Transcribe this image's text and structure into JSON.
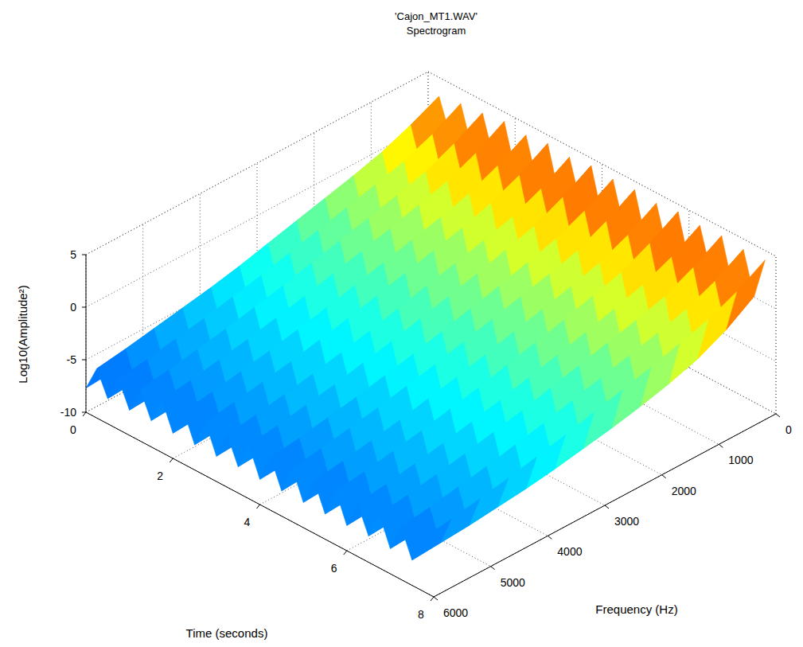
{
  "chart_data": {
    "type": "surface",
    "title": "'Cajon_MT1.WAV'\nSpectrogram",
    "xlabel": "Time (seconds)",
    "ylabel": "Frequency (Hz)",
    "zlabel": "Log10(Amplitude²)",
    "xlim": [
      0,
      8
    ],
    "ylim": [
      0,
      6000
    ],
    "zlim": [
      -10,
      5
    ],
    "xticks": [
      0,
      2,
      4,
      6,
      8
    ],
    "yticks": [
      0,
      1000,
      2000,
      3000,
      4000,
      5000,
      6000
    ],
    "zticks": [
      -10,
      -5,
      0,
      5
    ],
    "grid": true,
    "x": [
      0,
      0.25,
      0.5,
      0.75,
      1,
      1.25,
      1.5,
      1.75,
      2,
      2.25,
      2.5,
      2.75,
      3,
      3.25,
      3.5,
      3.75,
      4,
      4.25,
      4.5,
      4.75,
      5,
      5.25,
      5.5,
      5.75,
      6,
      6.25,
      6.5,
      6.75,
      7,
      7.25,
      7.5,
      7.75
    ],
    "y": [
      0,
      500,
      1000,
      1500,
      2000,
      2500,
      3000,
      3500,
      4000,
      4500,
      5000,
      5500,
      6000
    ],
    "values": [
      [
        -0.3,
        -2.0,
        -3.2,
        -4.1,
        -4.8,
        -5.4,
        -5.9,
        -6.3,
        -6.7,
        -7.0,
        -7.3,
        -7.5,
        -7.7
      ],
      [
        3.2,
        1.9,
        0.8,
        0.0,
        -0.7,
        -1.4,
        -2.1,
        -2.8,
        -3.4,
        -3.9,
        -4.4,
        -4.9,
        -5.3
      ],
      [
        0.1,
        -1.7,
        -3.0,
        -3.9,
        -4.6,
        -5.2,
        -5.7,
        -6.2,
        -6.6,
        -6.9,
        -7.2,
        -7.4,
        -7.6
      ],
      [
        3.6,
        2.1,
        1.0,
        0.2,
        -0.5,
        -1.2,
        -1.9,
        -2.6,
        -3.2,
        -3.8,
        -4.3,
        -4.8,
        -5.2
      ],
      [
        0.0,
        -1.8,
        -3.1,
        -3.9,
        -4.7,
        -5.3,
        -5.8,
        -6.2,
        -6.6,
        -7.0,
        -7.2,
        -7.4,
        -7.6
      ],
      [
        3.8,
        2.3,
        1.1,
        0.3,
        -0.4,
        -1.1,
        -1.8,
        -2.5,
        -3.1,
        -3.7,
        -4.2,
        -4.7,
        -5.1
      ],
      [
        0.2,
        -1.6,
        -2.9,
        -3.8,
        -4.5,
        -5.1,
        -5.6,
        -6.1,
        -6.5,
        -6.9,
        -7.1,
        -7.3,
        -7.5
      ],
      [
        4.1,
        2.5,
        1.3,
        0.5,
        -0.3,
        -1.0,
        -1.7,
        -2.4,
        -3.0,
        -3.6,
        -4.1,
        -4.6,
        -5.0
      ],
      [
        0.0,
        -1.8,
        -3.0,
        -3.9,
        -4.6,
        -5.2,
        -5.7,
        -6.2,
        -6.6,
        -6.9,
        -7.2,
        -7.4,
        -7.6
      ],
      [
        3.9,
        2.4,
        1.2,
        0.4,
        -0.3,
        -1.0,
        -1.7,
        -2.4,
        -3.0,
        -3.6,
        -4.1,
        -4.6,
        -5.0
      ],
      [
        0.1,
        -1.7,
        -3.0,
        -3.9,
        -4.6,
        -5.2,
        -5.7,
        -6.1,
        -6.5,
        -6.9,
        -7.1,
        -7.4,
        -7.6
      ],
      [
        4.2,
        2.6,
        1.4,
        0.5,
        -0.2,
        -0.9,
        -1.6,
        -2.3,
        -2.9,
        -3.5,
        -4.0,
        -4.5,
        -4.9
      ],
      [
        0.0,
        -1.8,
        -3.1,
        -4.0,
        -4.7,
        -5.3,
        -5.8,
        -6.2,
        -6.6,
        -7.0,
        -7.2,
        -7.4,
        -7.6
      ],
      [
        4.0,
        2.4,
        1.2,
        0.4,
        -0.3,
        -1.0,
        -1.7,
        -2.4,
        -3.0,
        -3.6,
        -4.1,
        -4.6,
        -5.0
      ],
      [
        0.2,
        -1.6,
        -2.9,
        -3.8,
        -4.5,
        -5.1,
        -5.6,
        -6.1,
        -6.5,
        -6.8,
        -7.1,
        -7.3,
        -7.5
      ],
      [
        4.3,
        2.7,
        1.4,
        0.6,
        -0.2,
        -0.9,
        -1.6,
        -2.3,
        -2.9,
        -3.5,
        -4.0,
        -4.5,
        -4.9
      ],
      [
        0.0,
        -1.8,
        -3.0,
        -3.9,
        -4.6,
        -5.2,
        -5.7,
        -6.2,
        -6.6,
        -6.9,
        -7.2,
        -7.4,
        -7.6
      ],
      [
        4.1,
        2.5,
        1.3,
        0.5,
        -0.3,
        -1.0,
        -1.7,
        -2.4,
        -3.0,
        -3.6,
        -4.1,
        -4.6,
        -5.0
      ],
      [
        0.1,
        -1.7,
        -3.0,
        -3.9,
        -4.6,
        -5.2,
        -5.7,
        -6.2,
        -6.6,
        -6.9,
        -7.2,
        -7.4,
        -7.6
      ],
      [
        4.2,
        2.6,
        1.3,
        0.5,
        -0.2,
        -0.9,
        -1.6,
        -2.3,
        -2.9,
        -3.5,
        -4.0,
        -4.5,
        -4.9
      ],
      [
        0.0,
        -1.8,
        -3.1,
        -4.0,
        -4.7,
        -5.3,
        -5.8,
        -6.2,
        -6.6,
        -7.0,
        -7.2,
        -7.4,
        -7.6
      ],
      [
        4.0,
        2.4,
        1.2,
        0.4,
        -0.3,
        -1.0,
        -1.7,
        -2.4,
        -3.0,
        -3.6,
        -4.1,
        -4.6,
        -5.0
      ],
      [
        0.1,
        -1.7,
        -3.0,
        -3.9,
        -4.6,
        -5.2,
        -5.7,
        -6.1,
        -6.5,
        -6.9,
        -7.1,
        -7.4,
        -7.6
      ],
      [
        4.3,
        2.7,
        1.4,
        0.6,
        -0.2,
        -0.9,
        -1.6,
        -2.3,
        -2.9,
        -3.5,
        -4.0,
        -4.5,
        -4.9
      ],
      [
        0.0,
        -1.8,
        -3.0,
        -3.9,
        -4.6,
        -5.2,
        -5.7,
        -6.2,
        -6.6,
        -6.9,
        -7.2,
        -7.4,
        -7.6
      ],
      [
        4.1,
        2.5,
        1.3,
        0.5,
        -0.3,
        -1.0,
        -1.7,
        -2.4,
        -3.0,
        -3.6,
        -4.1,
        -4.6,
        -5.0
      ],
      [
        0.2,
        -1.6,
        -2.9,
        -3.8,
        -4.5,
        -5.1,
        -5.6,
        -6.1,
        -6.5,
        -6.8,
        -7.1,
        -7.3,
        -7.5
      ],
      [
        4.2,
        2.6,
        1.3,
        0.5,
        -0.2,
        -0.9,
        -1.6,
        -2.3,
        -2.9,
        -3.5,
        -4.0,
        -4.5,
        -4.9
      ],
      [
        0.0,
        -1.8,
        -3.1,
        -4.0,
        -4.7,
        -5.3,
        -5.8,
        -6.2,
        -6.6,
        -7.0,
        -7.2,
        -7.4,
        -7.6
      ],
      [
        4.0,
        2.4,
        1.2,
        0.4,
        -0.3,
        -1.0,
        -1.7,
        -2.4,
        -3.0,
        -3.6,
        -4.1,
        -4.6,
        -5.0
      ],
      [
        0.1,
        -1.7,
        -3.0,
        -3.9,
        -4.6,
        -5.2,
        -5.7,
        -6.2,
        -6.6,
        -6.9,
        -7.2,
        -7.4,
        -7.6
      ],
      [
        4.1,
        2.5,
        1.3,
        0.5,
        -0.3,
        -1.0,
        -1.7,
        -2.4,
        -3.0,
        -3.6,
        -4.1,
        -4.6,
        -5.0
      ]
    ]
  }
}
